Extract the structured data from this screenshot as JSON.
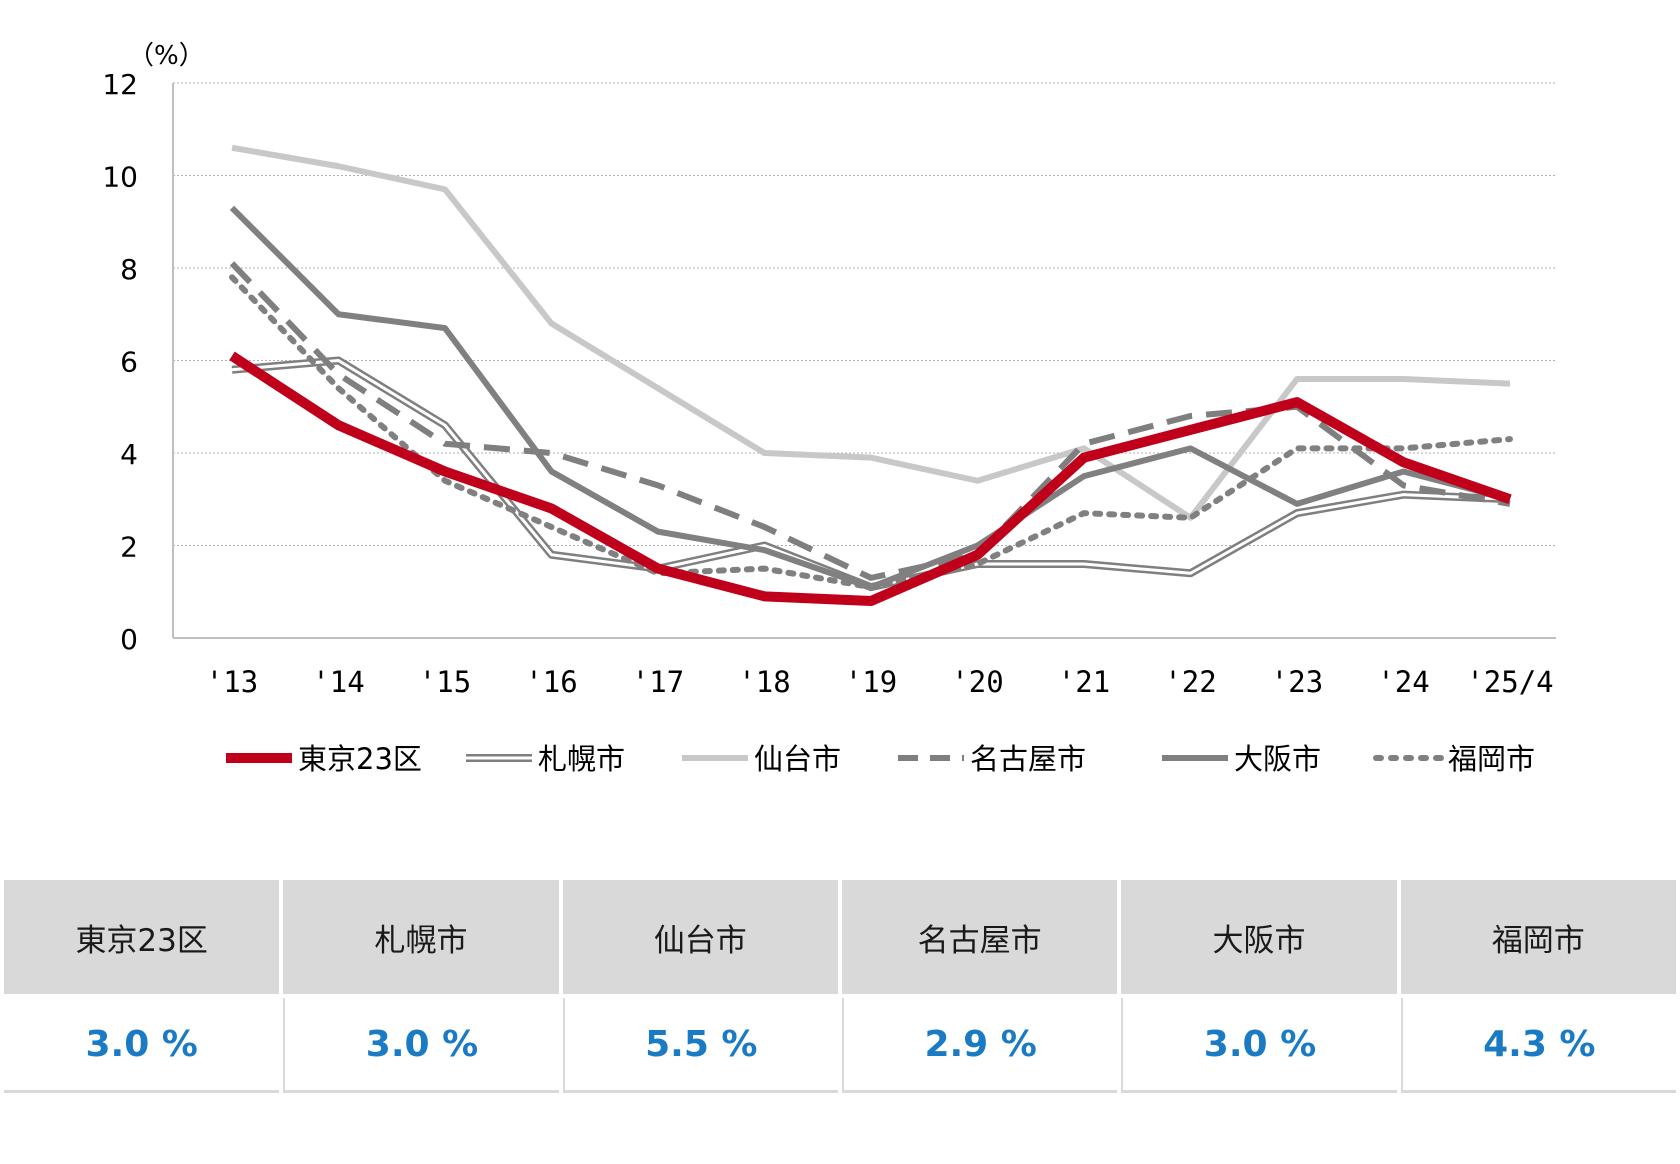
{
  "chart_data": {
    "type": "line",
    "unit_label": "（%）",
    "categories": [
      "'13",
      "'14",
      "'15",
      "'16",
      "'17",
      "'18",
      "'19",
      "'20",
      "'21",
      "'22",
      "'23",
      "'24",
      "'25/4"
    ],
    "ylim": [
      0,
      12
    ],
    "yticks": [
      "0",
      "2",
      "4",
      "6",
      "8",
      "10",
      "12"
    ],
    "grid": true,
    "legend_position": "bottom",
    "series": [
      {
        "name": "札幌市",
        "color": "#7f7f7f",
        "style": "double",
        "values": [
          5.8,
          6.0,
          4.6,
          1.8,
          1.5,
          2.0,
          1.1,
          1.6,
          1.6,
          1.4,
          2.7,
          3.1,
          3.0
        ]
      },
      {
        "name": "仙台市",
        "color": "#c8c8c8",
        "style": "solid",
        "values": [
          10.6,
          10.2,
          9.7,
          6.8,
          5.4,
          4.0,
          3.9,
          3.4,
          4.1,
          2.6,
          5.6,
          5.6,
          5.5
        ]
      },
      {
        "name": "名古屋市",
        "color": "#7f7f7f",
        "style": "dashed",
        "values": [
          8.1,
          5.7,
          4.2,
          4.0,
          3.3,
          2.4,
          1.3,
          1.8,
          4.2,
          4.8,
          5.0,
          3.3,
          2.9
        ]
      },
      {
        "name": "大阪市",
        "color": "#808080",
        "style": "solid",
        "values": [
          9.3,
          7.0,
          6.7,
          3.6,
          2.3,
          1.9,
          1.1,
          2.0,
          3.5,
          4.1,
          2.9,
          3.6,
          3.0
        ]
      },
      {
        "name": "福岡市",
        "color": "#808080",
        "style": "dotted",
        "values": [
          7.8,
          5.4,
          3.4,
          2.4,
          1.4,
          1.5,
          1.1,
          1.6,
          2.7,
          2.6,
          4.1,
          4.1,
          4.3
        ]
      },
      {
        "name": "東京23区",
        "color": "#c0001a",
        "style": "thick",
        "values": [
          6.1,
          4.6,
          3.6,
          2.8,
          1.5,
          0.9,
          0.8,
          1.8,
          3.9,
          4.5,
          5.1,
          3.8,
          3.0
        ]
      }
    ],
    "legend_order": [
      "東京23区",
      "札幌市",
      "仙台市",
      "名古屋市",
      "大阪市",
      "福岡市"
    ]
  },
  "summary": {
    "headers": [
      "東京23区",
      "札幌市",
      "仙台市",
      "名古屋市",
      "大阪市",
      "福岡市"
    ],
    "values": [
      "3.0 %",
      "3.0 %",
      "5.5 %",
      "2.9 %",
      "3.0 %",
      "4.3 %"
    ]
  }
}
